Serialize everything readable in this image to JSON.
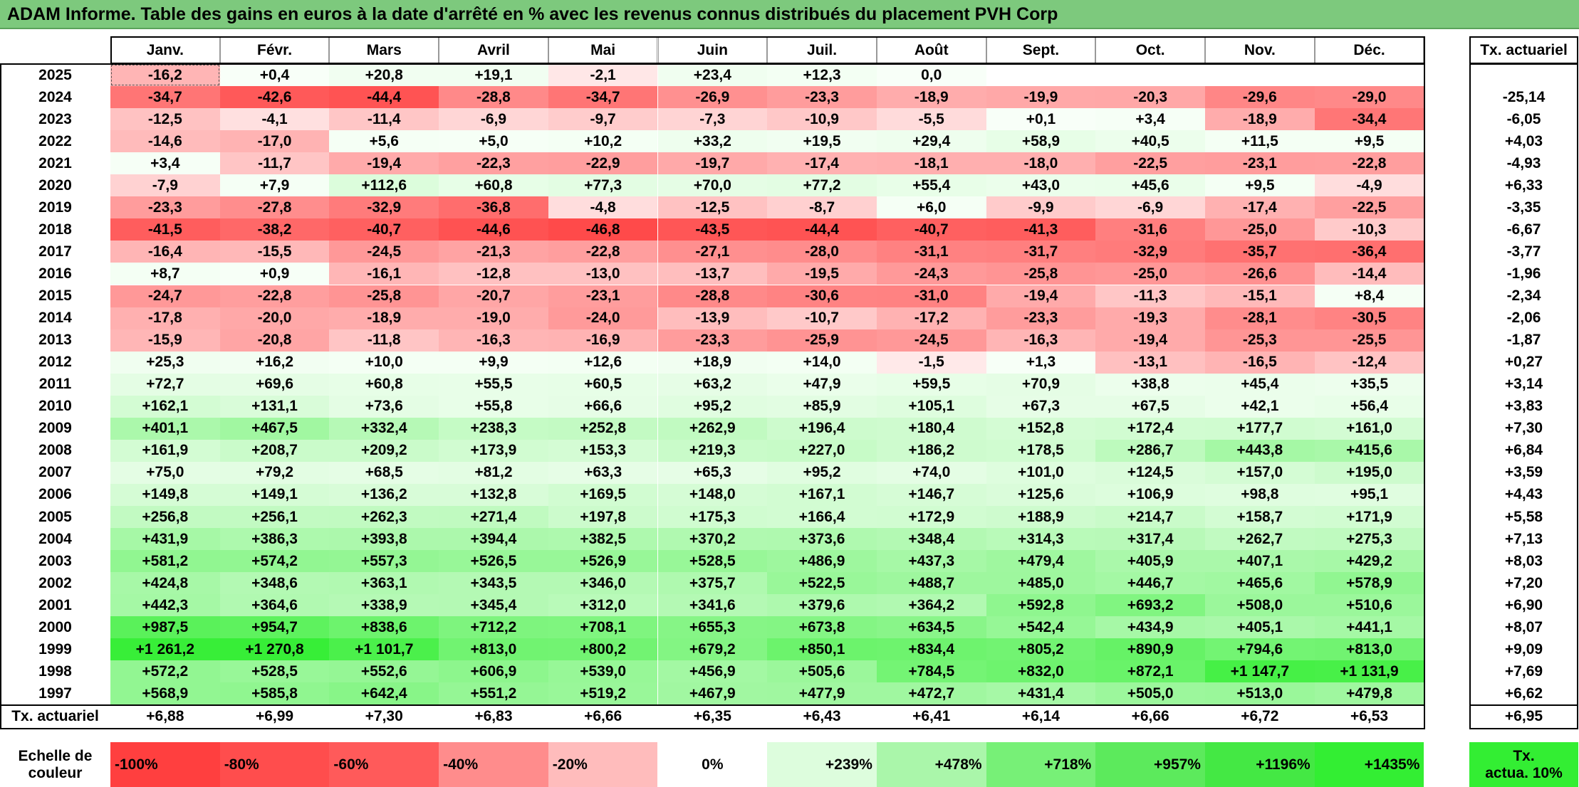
{
  "title": "ADAM Informe. Table des gains en euros à la date d'arrêté en % avec les revenus connus distribués du placement PVH Corp",
  "chart_data": {
    "type": "table",
    "columns": [
      "Janv.",
      "Févr.",
      "Mars",
      "Avril",
      "Mai",
      "Juin",
      "Juil.",
      "Août",
      "Sept.",
      "Oct.",
      "Nov.",
      "Déc."
    ],
    "rate_header": "Tx. actuariel",
    "rows": [
      {
        "year": "2025",
        "values": [
          "-16,2",
          "+0,4",
          "+20,8",
          "+19,1",
          "-2,1",
          "+23,4",
          "+12,3",
          "0,0",
          "",
          "",
          "",
          ""
        ],
        "rate": ""
      },
      {
        "year": "2024",
        "values": [
          "-34,7",
          "-42,6",
          "-44,4",
          "-28,8",
          "-34,7",
          "-26,9",
          "-23,3",
          "-18,9",
          "-19,9",
          "-20,3",
          "-29,6",
          "-29,0"
        ],
        "rate": "-25,14"
      },
      {
        "year": "2023",
        "values": [
          "-12,5",
          "-4,1",
          "-11,4",
          "-6,9",
          "-9,7",
          "-7,3",
          "-10,9",
          "-5,5",
          "+0,1",
          "+3,4",
          "-18,9",
          "-34,4"
        ],
        "rate": "-6,05"
      },
      {
        "year": "2022",
        "values": [
          "-14,6",
          "-17,0",
          "+5,6",
          "+5,0",
          "+10,2",
          "+33,2",
          "+19,5",
          "+29,4",
          "+58,9",
          "+40,5",
          "+11,5",
          "+9,5"
        ],
        "rate": "+4,03"
      },
      {
        "year": "2021",
        "values": [
          "+3,4",
          "-11,7",
          "-19,4",
          "-22,3",
          "-22,9",
          "-19,7",
          "-17,4",
          "-18,1",
          "-18,0",
          "-22,5",
          "-23,1",
          "-22,8"
        ],
        "rate": "-4,93"
      },
      {
        "year": "2020",
        "values": [
          "-7,9",
          "+7,9",
          "+112,6",
          "+60,8",
          "+77,3",
          "+70,0",
          "+77,2",
          "+55,4",
          "+43,0",
          "+45,6",
          "+9,5",
          "-4,9"
        ],
        "rate": "+6,33"
      },
      {
        "year": "2019",
        "values": [
          "-23,3",
          "-27,8",
          "-32,9",
          "-36,8",
          "-4,8",
          "-12,5",
          "-8,7",
          "+6,0",
          "-9,9",
          "-6,9",
          "-17,4",
          "-22,5"
        ],
        "rate": "-3,35"
      },
      {
        "year": "2018",
        "values": [
          "-41,5",
          "-38,2",
          "-40,7",
          "-44,6",
          "-46,8",
          "-43,5",
          "-44,4",
          "-40,7",
          "-41,3",
          "-31,6",
          "-25,0",
          "-10,3"
        ],
        "rate": "-6,67"
      },
      {
        "year": "2017",
        "values": [
          "-16,4",
          "-15,5",
          "-24,5",
          "-21,3",
          "-22,8",
          "-27,1",
          "-28,0",
          "-31,1",
          "-31,7",
          "-32,9",
          "-35,7",
          "-36,4"
        ],
        "rate": "-3,77"
      },
      {
        "year": "2016",
        "values": [
          "+8,7",
          "+0,9",
          "-16,1",
          "-12,8",
          "-13,0",
          "-13,7",
          "-19,5",
          "-24,3",
          "-25,8",
          "-25,0",
          "-26,6",
          "-14,4"
        ],
        "rate": "-1,96"
      },
      {
        "year": "2015",
        "values": [
          "-24,7",
          "-22,8",
          "-25,8",
          "-20,7",
          "-23,1",
          "-28,8",
          "-30,6",
          "-31,0",
          "-19,4",
          "-11,3",
          "-15,1",
          "+8,4"
        ],
        "rate": "-2,34"
      },
      {
        "year": "2014",
        "values": [
          "-17,8",
          "-20,0",
          "-18,9",
          "-19,0",
          "-24,0",
          "-13,9",
          "-10,7",
          "-17,2",
          "-23,3",
          "-19,3",
          "-28,1",
          "-30,5"
        ],
        "rate": "-2,06"
      },
      {
        "year": "2013",
        "values": [
          "-15,9",
          "-20,8",
          "-11,8",
          "-16,3",
          "-16,9",
          "-23,3",
          "-25,9",
          "-24,5",
          "-16,3",
          "-19,4",
          "-25,3",
          "-25,5"
        ],
        "rate": "-1,87"
      },
      {
        "year": "2012",
        "values": [
          "+25,3",
          "+16,2",
          "+10,0",
          "+9,9",
          "+12,6",
          "+18,9",
          "+14,0",
          "-1,5",
          "+1,3",
          "-13,1",
          "-16,5",
          "-12,4"
        ],
        "rate": "+0,27"
      },
      {
        "year": "2011",
        "values": [
          "+72,7",
          "+69,6",
          "+60,8",
          "+55,5",
          "+60,5",
          "+63,2",
          "+47,9",
          "+59,5",
          "+70,9",
          "+38,8",
          "+45,4",
          "+35,5"
        ],
        "rate": "+3,14"
      },
      {
        "year": "2010",
        "values": [
          "+162,1",
          "+131,1",
          "+73,6",
          "+55,8",
          "+66,6",
          "+95,2",
          "+85,9",
          "+105,1",
          "+67,3",
          "+67,5",
          "+42,1",
          "+56,4"
        ],
        "rate": "+3,83"
      },
      {
        "year": "2009",
        "values": [
          "+401,1",
          "+467,5",
          "+332,4",
          "+238,3",
          "+252,8",
          "+262,9",
          "+196,4",
          "+180,4",
          "+152,8",
          "+172,4",
          "+177,7",
          "+161,0"
        ],
        "rate": "+7,30"
      },
      {
        "year": "2008",
        "values": [
          "+161,9",
          "+208,7",
          "+209,2",
          "+173,9",
          "+153,3",
          "+219,3",
          "+227,0",
          "+186,2",
          "+178,5",
          "+286,7",
          "+443,8",
          "+415,6"
        ],
        "rate": "+6,84"
      },
      {
        "year": "2007",
        "values": [
          "+75,0",
          "+79,2",
          "+68,5",
          "+81,2",
          "+63,3",
          "+65,3",
          "+95,2",
          "+74,0",
          "+101,0",
          "+124,5",
          "+157,0",
          "+195,0"
        ],
        "rate": "+3,59"
      },
      {
        "year": "2006",
        "values": [
          "+149,8",
          "+149,1",
          "+136,2",
          "+132,8",
          "+169,5",
          "+148,0",
          "+167,1",
          "+146,7",
          "+125,6",
          "+106,9",
          "+98,8",
          "+95,1"
        ],
        "rate": "+4,43"
      },
      {
        "year": "2005",
        "values": [
          "+256,8",
          "+256,1",
          "+262,3",
          "+271,4",
          "+197,8",
          "+175,3",
          "+166,4",
          "+172,9",
          "+188,9",
          "+214,7",
          "+158,7",
          "+171,9"
        ],
        "rate": "+5,58"
      },
      {
        "year": "2004",
        "values": [
          "+431,9",
          "+386,3",
          "+393,8",
          "+394,4",
          "+382,5",
          "+370,2",
          "+373,6",
          "+348,4",
          "+314,3",
          "+317,4",
          "+262,7",
          "+275,3"
        ],
        "rate": "+7,13"
      },
      {
        "year": "2003",
        "values": [
          "+581,2",
          "+574,2",
          "+557,3",
          "+526,5",
          "+526,9",
          "+528,5",
          "+486,9",
          "+437,3",
          "+479,4",
          "+405,9",
          "+407,1",
          "+429,2"
        ],
        "rate": "+8,03"
      },
      {
        "year": "2002",
        "values": [
          "+424,8",
          "+348,6",
          "+363,1",
          "+343,5",
          "+346,0",
          "+375,7",
          "+522,5",
          "+488,7",
          "+485,0",
          "+446,7",
          "+465,6",
          "+578,9"
        ],
        "rate": "+7,20"
      },
      {
        "year": "2001",
        "values": [
          "+442,3",
          "+364,6",
          "+338,9",
          "+345,4",
          "+312,0",
          "+341,6",
          "+379,6",
          "+364,2",
          "+592,8",
          "+693,2",
          "+508,0",
          "+510,6"
        ],
        "rate": "+6,90"
      },
      {
        "year": "2000",
        "values": [
          "+987,5",
          "+954,7",
          "+838,6",
          "+712,2",
          "+708,1",
          "+655,3",
          "+673,8",
          "+634,5",
          "+542,4",
          "+434,9",
          "+405,1",
          "+441,1"
        ],
        "rate": "+8,07"
      },
      {
        "year": "1999",
        "values": [
          "+1 261,2",
          "+1 270,8",
          "+1 101,7",
          "+813,0",
          "+800,2",
          "+679,2",
          "+850,1",
          "+834,4",
          "+805,2",
          "+890,9",
          "+794,6",
          "+813,0"
        ],
        "rate": "+9,09"
      },
      {
        "year": "1998",
        "values": [
          "+572,2",
          "+528,5",
          "+552,6",
          "+606,9",
          "+539,0",
          "+456,9",
          "+505,6",
          "+784,5",
          "+832,0",
          "+872,1",
          "+1 147,7",
          "+1 131,9"
        ],
        "rate": "+7,69"
      },
      {
        "year": "1997",
        "values": [
          "+568,9",
          "+585,8",
          "+642,4",
          "+551,2",
          "+519,2",
          "+467,9",
          "+477,9",
          "+472,7",
          "+431,4",
          "+505,0",
          "+513,0",
          "+479,8"
        ],
        "rate": "+6,62"
      }
    ],
    "summary": {
      "label": "Tx. actuariel",
      "values": [
        "+6,88",
        "+6,99",
        "+7,30",
        "+6,83",
        "+6,66",
        "+6,35",
        "+6,43",
        "+6,41",
        "+6,14",
        "+6,66",
        "+6,72",
        "+6,53"
      ],
      "rate": "+6,95"
    },
    "scale": {
      "label_line1": "Echelle de",
      "label_line2": "couleur",
      "stops": [
        "-100%",
        "-80%",
        "-60%",
        "-40%",
        "-20%",
        "0%",
        "+239%",
        "+478%",
        "+718%",
        "+957%",
        "+1196%",
        "+1435%"
      ],
      "rate_line1": "Tx.",
      "rate_line2": "actua. 10%"
    },
    "colors": {
      "negative_full": "#ff3f3f",
      "neutral": "#ffffff",
      "positive_full": "#33ee33",
      "border": "#000000"
    }
  }
}
